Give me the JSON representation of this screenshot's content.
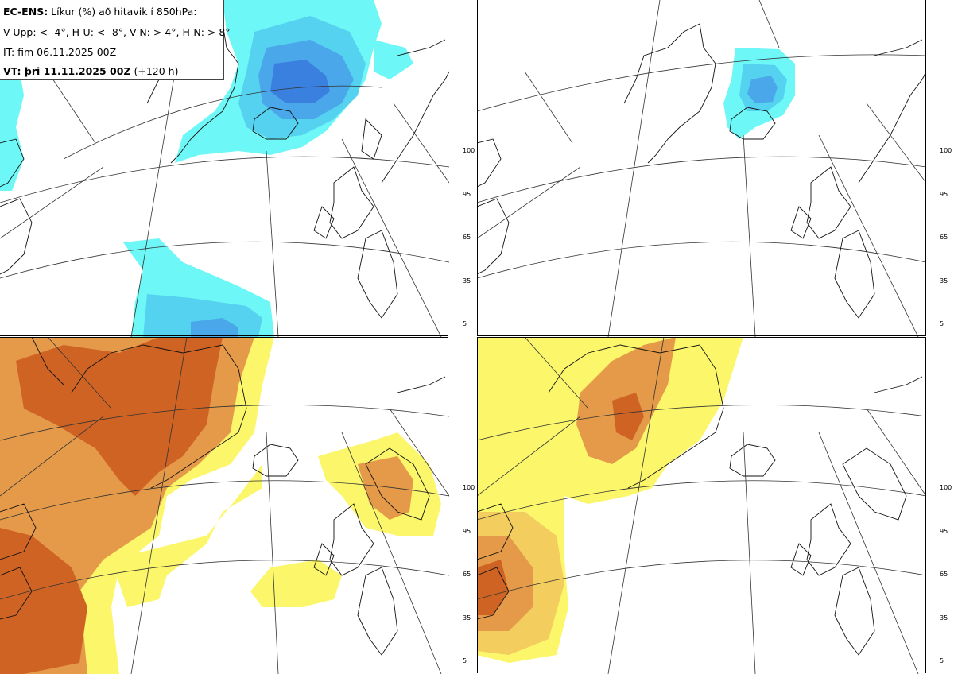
{
  "header": {
    "product": "EC-ENS:",
    "title_rest": " Líkur (%) að hitavik í 850hPa:",
    "thresholds": "V-Upp: < -4°, H-U: < -8°, V-N: > 4°, H-N: > 8°",
    "init_time": "IT: fim 06.11.2025 00Z",
    "valid_label": "VT: þri 11.11.2025 00Z",
    "valid_offset": " (+120 h)"
  },
  "panels": [
    {
      "id": "top-left",
      "threshold": "V-Upp: < -4°",
      "palette": "blue"
    },
    {
      "id": "top-right",
      "threshold": "H-U: < -8°",
      "palette": "blue"
    },
    {
      "id": "bottom-left",
      "threshold": "V-N: > 4°",
      "palette": "orange"
    },
    {
      "id": "bottom-right",
      "threshold": "H-N: > 8°",
      "palette": "orange"
    }
  ],
  "colorbar": {
    "levels": [
      "5",
      "35",
      "65",
      "95",
      "100"
    ],
    "blue_colors": [
      "#6ef7f7",
      "#55d2ef",
      "#4aa8ea",
      "#3a80df"
    ],
    "orange_colors": [
      "#fbf66a",
      "#f3cd5d",
      "#e49a48",
      "#cf6324"
    ]
  }
}
